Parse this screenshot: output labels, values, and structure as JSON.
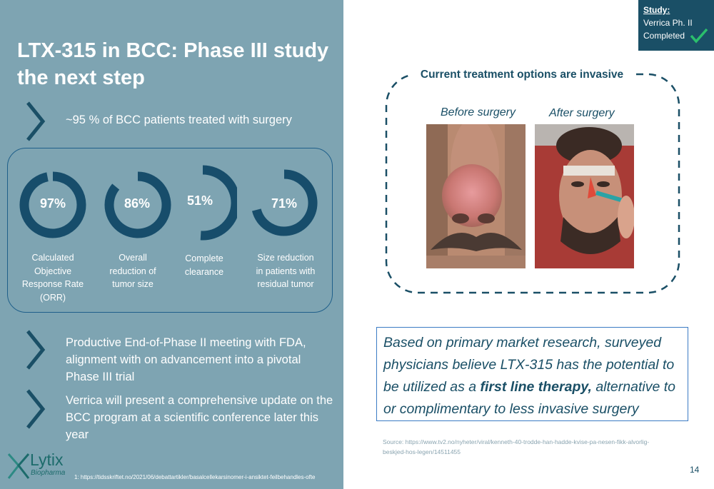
{
  "slide": {
    "title": "LTX-315 in BCC: Phase III study the next step",
    "page_number": "14",
    "footnote": "1: https://tidsskriftet.no/2021/06/debattartikler/basalcellekarsinomer-i-ansiktet-feilbehandles-ofte"
  },
  "bullets": {
    "b1": "~95 % of BCC patients treated with surgery",
    "b2": "Productive End-of-Phase II meeting with FDA, alignment with on advancement into a pivotal Phase III trial",
    "b3": "Verrica will present a comprehensive update on the BCC program at a scientific conference later this year"
  },
  "stats": [
    {
      "value": "97%",
      "fraction": 0.97,
      "label": "Calculated\nObjective\nResponse Rate\n(ORR)"
    },
    {
      "value": "86%",
      "fraction": 0.86,
      "label": "Overall\nreduction of\ntumor size"
    },
    {
      "value": "51%",
      "fraction": 0.51,
      "label": "Complete\nclearance"
    },
    {
      "value": "71%",
      "fraction": 0.71,
      "label": "Size reduction\nin patients with\nresidual  tumor"
    }
  ],
  "study_badge": {
    "heading": "Study:",
    "line1": "Verrica Ph. II",
    "line2": "Completed"
  },
  "treatment": {
    "title": "Current treatment options are invasive",
    "before_caption": "Before surgery",
    "after_caption": "After surgery"
  },
  "quote": {
    "part1": "Based on primary market research, surveyed physicians believe LTX-315 has the potential to be utilized as a ",
    "bold": "first line therapy,",
    "part2": " alternative to or complimentary to less invasive surgery"
  },
  "source": "Source: https://www.tv2.no/nyheter/viral/kenneth-40-trodde-han-hadde-kvise-pa-nesen-fikk-alvorlig-beskjed-hos-legen/14511455",
  "logo": {
    "name": "Lytix",
    "sub": "Biopharma"
  },
  "colors": {
    "panel": "#7ea4b2",
    "dark_blue": "#1a4f66",
    "donut": "#174d6b",
    "check": "#2bbf6c"
  }
}
